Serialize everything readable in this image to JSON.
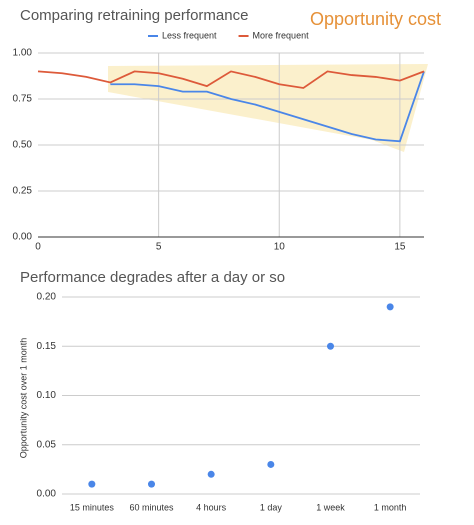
{
  "chart_data": [
    {
      "type": "line",
      "title": "Comparing retraining performance",
      "annotation": "Opportunity cost",
      "x": [
        0,
        1,
        2,
        3,
        4,
        5,
        6,
        7,
        8,
        9,
        10,
        11,
        12,
        13,
        14,
        15,
        16
      ],
      "series": [
        {
          "name": "Less frequent",
          "color": "#4a86e8",
          "values": [
            null,
            null,
            null,
            0.83,
            0.83,
            0.82,
            0.79,
            0.79,
            0.75,
            0.72,
            0.68,
            0.64,
            0.6,
            0.56,
            0.53,
            0.52,
            0.9
          ]
        },
        {
          "name": "More frequent",
          "color": "#dd5a3a",
          "values": [
            0.9,
            0.89,
            0.87,
            0.84,
            0.9,
            0.89,
            0.86,
            0.82,
            0.9,
            0.87,
            0.83,
            0.81,
            0.9,
            0.88,
            0.87,
            0.85,
            0.9
          ]
        }
      ],
      "xlim": [
        0,
        16
      ],
      "xticks": [
        0,
        5,
        10,
        15
      ],
      "ylim": [
        0,
        1
      ],
      "yticks": [
        {
          "value": 0,
          "label": "0.00"
        },
        {
          "value": 0.25,
          "label": "0.25"
        },
        {
          "value": 0.5,
          "label": "0.50"
        },
        {
          "value": 0.75,
          "label": "0.75"
        },
        {
          "value": 1,
          "label": "1.00"
        }
      ],
      "grid": true,
      "legend": "top"
    },
    {
      "type": "scatter",
      "title": "Performance degrades after a day or so",
      "y_label": "Opportunity cost over 1 month",
      "categories": [
        "15 minutes",
        "60 minutes",
        "4 hours",
        "1 day",
        "1 week",
        "1 month"
      ],
      "values": [
        0.01,
        0.01,
        0.02,
        0.03,
        0.15,
        0.19
      ],
      "color": "#4a86e8",
      "ylim": [
        0,
        0.2
      ],
      "yticks": [
        {
          "value": 0,
          "label": "0.00"
        },
        {
          "value": 0.05,
          "label": "0.05"
        },
        {
          "value": 0.1,
          "label": "0.10"
        },
        {
          "value": 0.15,
          "label": "0.15"
        },
        {
          "value": 0.2,
          "label": "0.20"
        }
      ],
      "grid": true
    }
  ]
}
